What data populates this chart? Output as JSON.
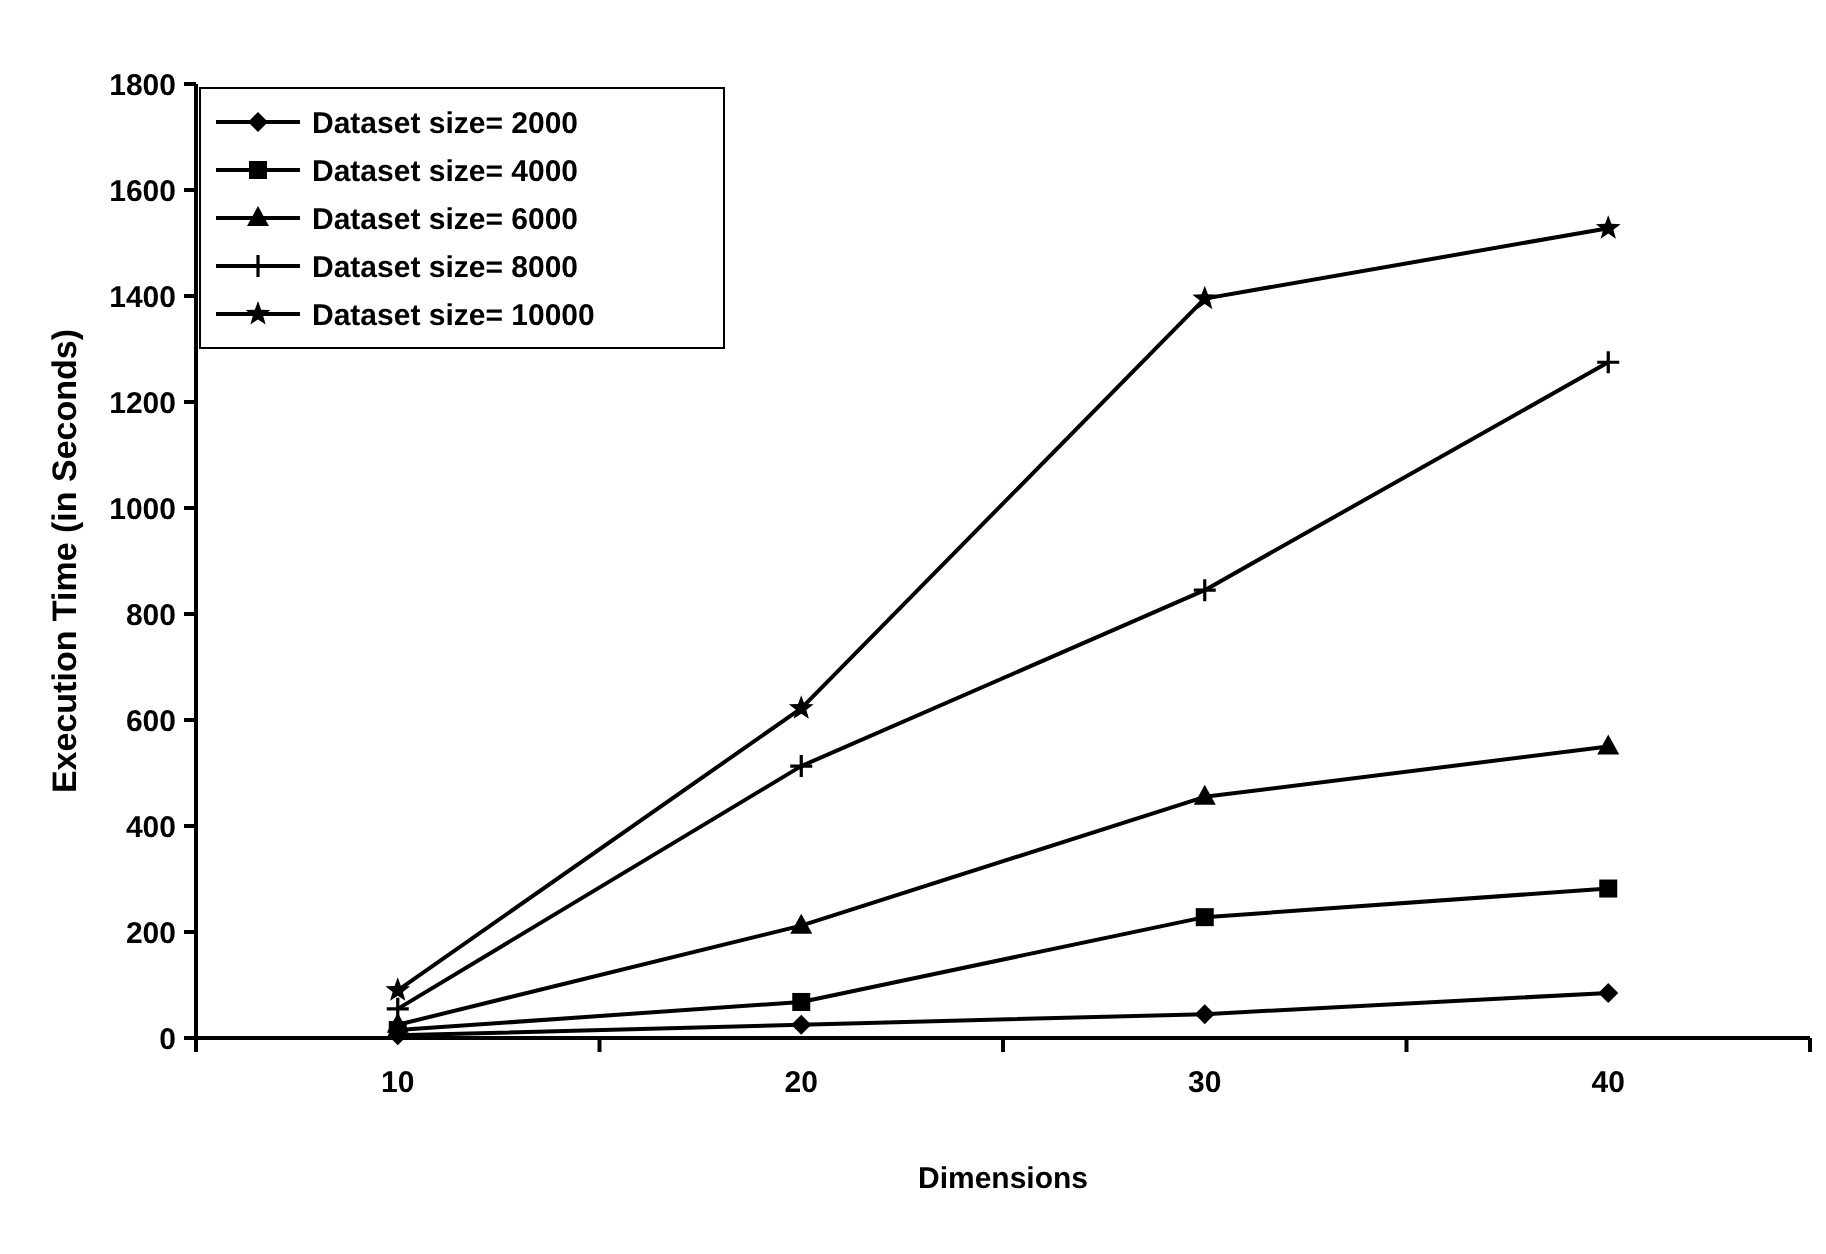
{
  "chart_data": {
    "type": "line",
    "xlabel": "Dimensions",
    "ylabel": "Execution Time (in Seconds)",
    "categories": [
      "10",
      "20",
      "30",
      "40"
    ],
    "ylim": [
      0,
      1800
    ],
    "yticks": [
      0,
      200,
      400,
      600,
      800,
      1000,
      1200,
      1400,
      1600,
      1800
    ],
    "grid": false,
    "legend": "top left",
    "series": [
      {
        "name": "Dataset size= 2000",
        "color": "#000000",
        "marker": "diamond",
        "values": [
          5,
          25,
          45,
          85
        ]
      },
      {
        "name": "Dataset size= 4000",
        "color": "#000000",
        "marker": "square",
        "values": [
          15,
          68,
          228,
          282
        ]
      },
      {
        "name": "Dataset size= 6000",
        "color": "#000000",
        "marker": "triangle",
        "values": [
          25,
          212,
          455,
          550
        ]
      },
      {
        "name": "Dataset size= 8000",
        "color": "#000000",
        "marker": "cross",
        "values": [
          55,
          513,
          845,
          1275
        ]
      },
      {
        "name": "Dataset size= 10000",
        "color": "#000000",
        "marker": "star",
        "values": [
          90,
          622,
          1395,
          1528
        ]
      }
    ]
  }
}
